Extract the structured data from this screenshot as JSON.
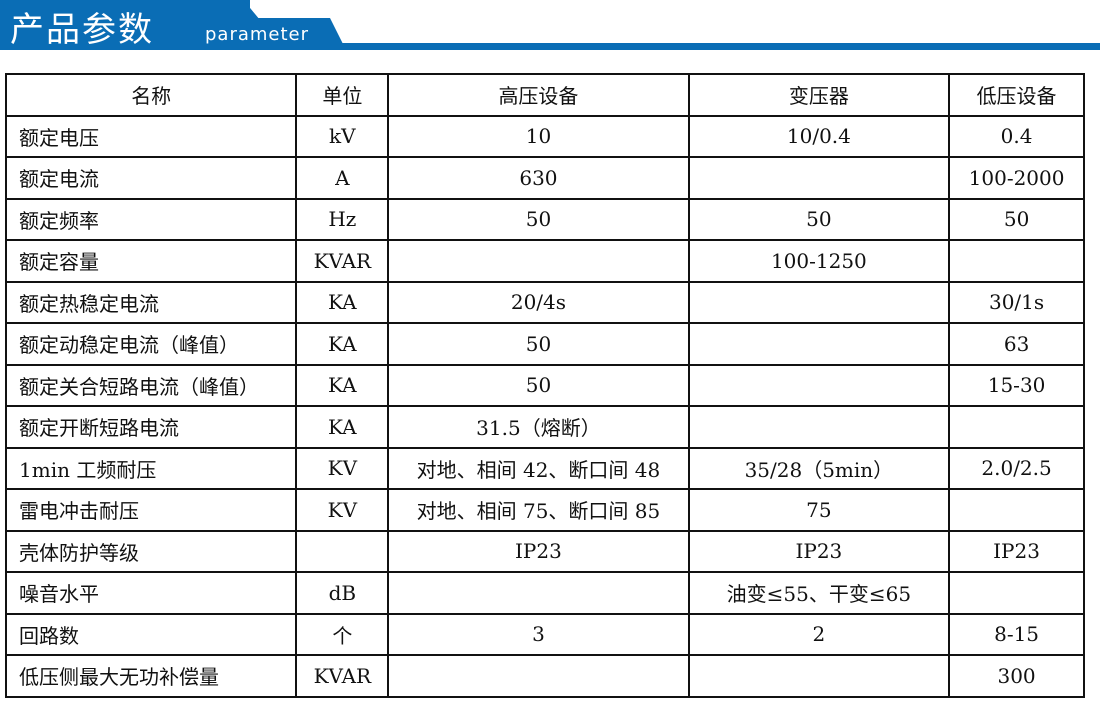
{
  "header": {
    "title": "产品参数",
    "subtitle": "parameter",
    "color": "#0a6db5"
  },
  "table": {
    "columns": [
      "名称",
      "单位",
      "高压设备",
      "变压器",
      "低压设备"
    ],
    "rows": [
      [
        "额定电压",
        "kV",
        "10",
        "10/0.4",
        "0.4"
      ],
      [
        "额定电流",
        "A",
        "630",
        "",
        "100-2000"
      ],
      [
        "额定频率",
        "Hz",
        "50",
        "50",
        "50"
      ],
      [
        "额定容量",
        "KVAR",
        "",
        "100-1250",
        ""
      ],
      [
        "额定热稳定电流",
        "KA",
        "20/4s",
        "",
        "30/1s"
      ],
      [
        "额定动稳定电流（峰值）",
        "KA",
        "50",
        "",
        "63"
      ],
      [
        "额定关合短路电流（峰值）",
        "KA",
        "50",
        "",
        "15-30"
      ],
      [
        "额定开断短路电流",
        "KA",
        "31.5（熔断）",
        "",
        ""
      ],
      [
        "1min 工频耐压",
        "KV",
        "对地、相间 42、断口间 48",
        "35/28（5min）",
        "2.0/2.5"
      ],
      [
        "雷电冲击耐压",
        "KV",
        "对地、相间 75、断口间 85",
        "75",
        ""
      ],
      [
        "壳体防护等级",
        "",
        "IP23",
        "IP23",
        "IP23"
      ],
      [
        "噪音水平",
        "dB",
        "",
        "油变≤55、干变≤65",
        ""
      ],
      [
        "回路数",
        "个",
        "3",
        "2",
        "8-15"
      ],
      [
        "低压侧最大无功补偿量",
        "KVAR",
        "",
        "",
        "300"
      ]
    ]
  }
}
